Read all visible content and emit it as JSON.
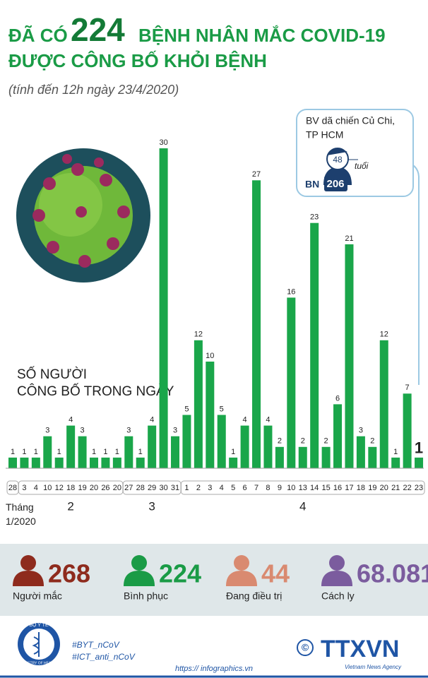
{
  "header": {
    "prefix": "ĐÃ CÓ",
    "number": "224",
    "suffix": "BỆNH NHÂN MẮC COVID-19",
    "line2": "ĐƯỢC CÔNG BỐ KHỎI BỆNH",
    "subtitle": "(tính đến 12h ngày 23/4/2020)"
  },
  "chart_data": {
    "type": "bar",
    "color": "#1aa64a",
    "label_lines": [
      "SỐ NGƯỜI",
      "CÔNG BỐ TRONG NGÀY"
    ],
    "groups": [
      {
        "name": "Tháng 1/2020",
        "categories": [
          "28"
        ],
        "values": [
          1
        ]
      },
      {
        "name": "2",
        "categories": [
          "3",
          "4",
          "10",
          "12",
          "18",
          "19",
          "20",
          "26",
          "20"
        ],
        "values": [
          1,
          1,
          3,
          1,
          4,
          3,
          1,
          1,
          1
        ]
      },
      {
        "name": "3",
        "categories": [
          "27",
          "28",
          "29",
          "30",
          "31"
        ],
        "values": [
          3,
          1,
          4,
          30,
          3
        ]
      },
      {
        "name": "4",
        "categories": [
          "1",
          "2",
          "3",
          "4",
          "5",
          "6",
          "7",
          "8",
          "9",
          "10",
          "13",
          "14",
          "15",
          "16",
          "17",
          "18",
          "19",
          "20",
          "21",
          "22",
          "23"
        ],
        "values": [
          5,
          12,
          10,
          5,
          1,
          4,
          27,
          4,
          2,
          16,
          2,
          23,
          2,
          6,
          21,
          3,
          2,
          12,
          1,
          7,
          1
        ]
      }
    ]
  },
  "callout": {
    "lines": [
      "BV dã chiến Củ Chi,",
      "TP HCM"
    ],
    "age": "48",
    "age_unit": "tuổi",
    "patient_prefix": "BN",
    "patient_number": "206"
  },
  "stats": [
    {
      "value": "268",
      "label": "Người mắc",
      "color": "#8e2b1d"
    },
    {
      "value": "224",
      "label": "Bình phục",
      "color": "#1a9b46"
    },
    {
      "value": "44",
      "label": "Đang điều trị",
      "color": "#d98a70"
    },
    {
      "value": "68.081",
      "label": "Cách ly",
      "color": "#7b5c9e"
    }
  ],
  "footer": {
    "hashtags": [
      "#BYT_nCoV",
      "#ICT_anti_nCoV"
    ],
    "url": "https:// infographics.vn",
    "logo_top": "BỘ Y TẾ",
    "logo_bottom": "MINISTRY OF HEALTH",
    "copyright": "©",
    "agency": "TTXVN",
    "agency_sub": "Vietnam News Agency"
  }
}
